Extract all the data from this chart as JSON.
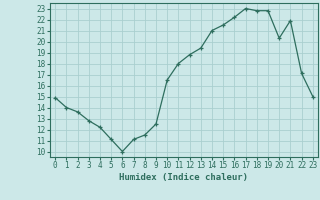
{
  "x": [
    0,
    1,
    2,
    3,
    4,
    5,
    6,
    7,
    8,
    9,
    10,
    11,
    12,
    13,
    14,
    15,
    16,
    17,
    18,
    19,
    20,
    21,
    22,
    23
  ],
  "y": [
    14.9,
    14.0,
    13.6,
    12.8,
    12.2,
    11.1,
    10.0,
    11.1,
    11.5,
    12.5,
    16.5,
    18.0,
    18.8,
    19.4,
    21.0,
    21.5,
    22.2,
    23.0,
    22.8,
    22.8,
    20.3,
    21.9,
    17.1,
    15.0
  ],
  "line_color": "#2e6e5e",
  "marker": "+",
  "bg_color": "#cce8e8",
  "grid_color": "#aacfcf",
  "xlabel": "Humidex (Indice chaleur)",
  "xlim": [
    -0.5,
    23.5
  ],
  "ylim": [
    9.5,
    23.5
  ],
  "xticks": [
    0,
    1,
    2,
    3,
    4,
    5,
    6,
    7,
    8,
    9,
    10,
    11,
    12,
    13,
    14,
    15,
    16,
    17,
    18,
    19,
    20,
    21,
    22,
    23
  ],
  "yticks": [
    10,
    11,
    12,
    13,
    14,
    15,
    16,
    17,
    18,
    19,
    20,
    21,
    22,
    23
  ],
  "tick_fontsize": 5.5,
  "xlabel_fontsize": 6.5
}
